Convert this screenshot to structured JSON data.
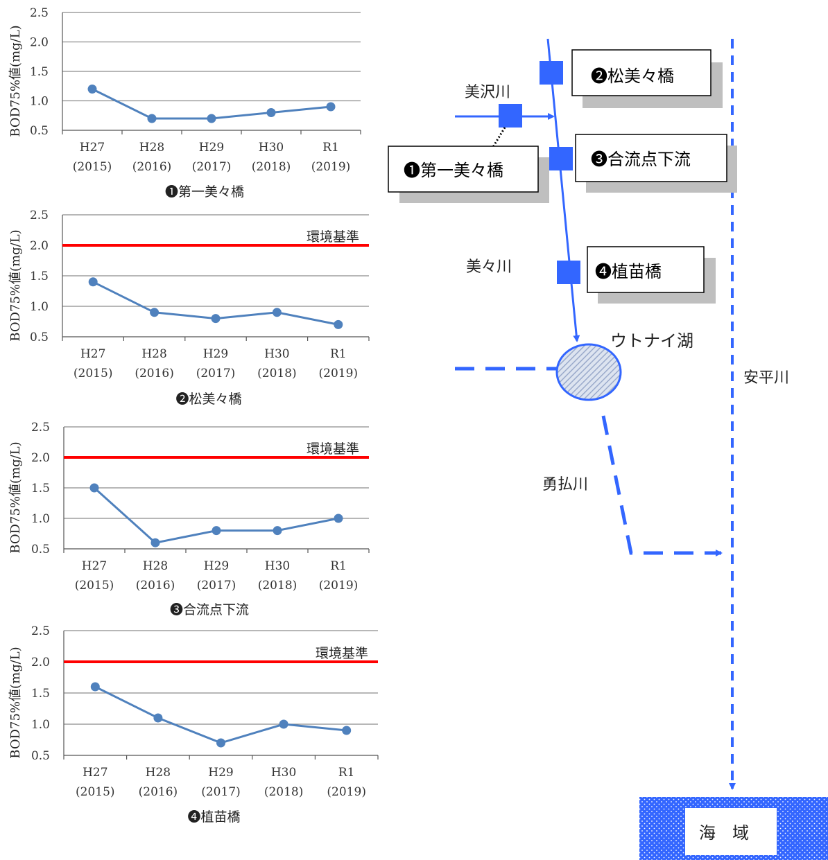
{
  "chart_data": [
    {
      "type": "line",
      "caption": "❶第一美々橋",
      "ylabel": "BOD75%値(mg/L)",
      "ylim": [
        0.5,
        2.5
      ],
      "yticks": [
        "0.5",
        "1.0",
        "1.5",
        "2.0",
        "2.5"
      ],
      "categories": [
        [
          "H27",
          "(2015)"
        ],
        [
          "H28",
          "(2016)"
        ],
        [
          "H29",
          "(2017)"
        ],
        [
          "H30",
          "(2018)"
        ],
        [
          "R1",
          "(2019)"
        ]
      ],
      "values": [
        1.2,
        0.7,
        0.7,
        0.8,
        0.9
      ],
      "grid": true
    },
    {
      "type": "line",
      "caption": "❷松美々橋",
      "ylabel": "BOD75%値(mg/L)",
      "ylim": [
        0.5,
        2.5
      ],
      "yticks": [
        "0.5",
        "1.0",
        "1.5",
        "2.0",
        "2.5"
      ],
      "categories": [
        [
          "H27",
          "(2015)"
        ],
        [
          "H28",
          "(2016)"
        ],
        [
          "H29",
          "(2017)"
        ],
        [
          "H30",
          "(2018)"
        ],
        [
          "R1",
          "(2019)"
        ]
      ],
      "values": [
        1.4,
        0.9,
        0.8,
        0.9,
        0.7
      ],
      "standard": {
        "label": "環境基準",
        "value": 2.0,
        "color": "#ff0000"
      },
      "grid": true
    },
    {
      "type": "line",
      "caption": "❸合流点下流",
      "ylabel": "BOD75%値(mg/L)",
      "ylim": [
        0.5,
        2.5
      ],
      "yticks": [
        "0.5",
        "1.0",
        "1.5",
        "2.0",
        "2.5"
      ],
      "categories": [
        [
          "H27",
          "(2015)"
        ],
        [
          "H28",
          "(2016)"
        ],
        [
          "H29",
          "(2017)"
        ],
        [
          "H30",
          "(2018)"
        ],
        [
          "R1",
          "(2019)"
        ]
      ],
      "values": [
        1.5,
        0.6,
        0.8,
        0.8,
        1.0
      ],
      "standard": {
        "label": "環境基準",
        "value": 2.0,
        "color": "#ff0000"
      },
      "grid": true
    },
    {
      "type": "line",
      "caption": "❹植苗橋",
      "ylabel": "BOD75%値(mg/L)",
      "ylim": [
        0.5,
        2.5
      ],
      "yticks": [
        "0.5",
        "1.0",
        "1.5",
        "2.0",
        "2.5"
      ],
      "categories": [
        [
          "H27",
          "(2015)"
        ],
        [
          "H28",
          "(2016)"
        ],
        [
          "H29",
          "(2017)"
        ],
        [
          "H30",
          "(2018)"
        ],
        [
          "R1",
          "(2019)"
        ]
      ],
      "values": [
        1.6,
        1.1,
        0.7,
        1.0,
        0.9
      ],
      "standard": {
        "label": "環境基準",
        "value": 2.0,
        "color": "#ff0000"
      },
      "grid": true
    }
  ],
  "colors": {
    "series": "#4f81bd",
    "standard": "#ff0000",
    "river": "#3366ff",
    "station": "#3366ff",
    "shadow": "#bfbfbf"
  },
  "map": {
    "stations": [
      {
        "label": "❶第一美々橋"
      },
      {
        "label": "❷松美々橋"
      },
      {
        "label": "❸合流点下流"
      },
      {
        "label": "❹植苗橋"
      }
    ],
    "rivers": {
      "misawa": "美沢川",
      "bibi": "美々川",
      "yufutsu": "勇払川",
      "abira": "安平川"
    },
    "lake": "ウトナイ湖",
    "sea": "海　域"
  }
}
